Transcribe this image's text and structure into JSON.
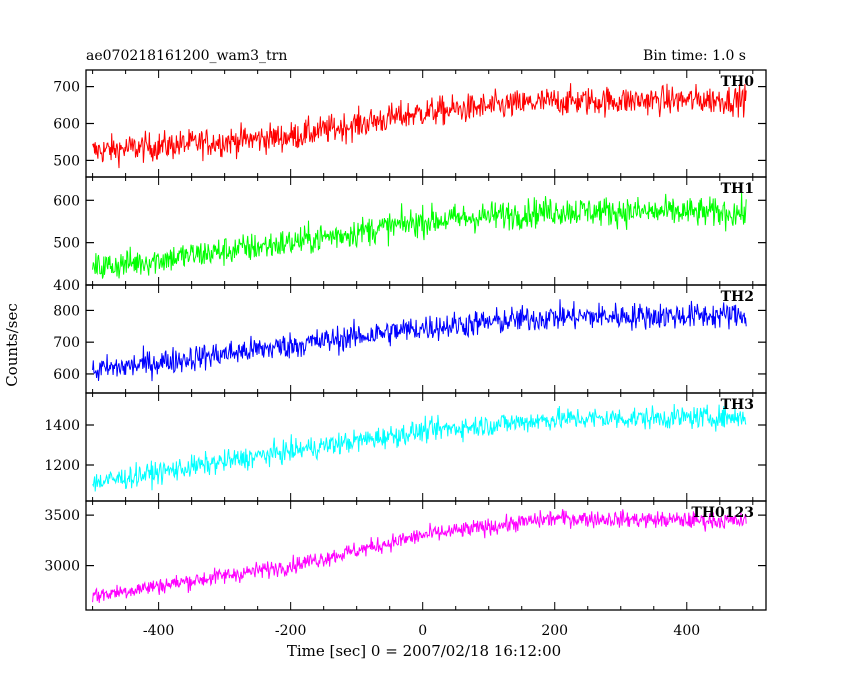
{
  "header": {
    "title": "ae070218161200_wam3_trn",
    "bin_time": "Bin time: 1.0 s"
  },
  "chart_data": {
    "type": "line",
    "xlabel": "Time [sec] 0 = 2007/02/18 16:12:00",
    "ylabel": "Counts/sec",
    "xlim": [
      -510,
      520
    ],
    "xticks": [
      -400,
      -200,
      0,
      200,
      400
    ],
    "x_range": [
      -500,
      490
    ],
    "x_step": 1,
    "panels": [
      {
        "name": "TH0",
        "color": "#ff0000",
        "ylim": [
          455,
          745
        ],
        "yticks": [
          500,
          600,
          700
        ],
        "trend": [
          [
            -500,
            525
          ],
          [
            -200,
            565
          ],
          [
            0,
            630
          ],
          [
            200,
            660
          ],
          [
            490,
            665
          ]
        ],
        "noise": 28
      },
      {
        "name": "TH1",
        "color": "#00ff00",
        "ylim": [
          400,
          655
        ],
        "yticks": [
          400,
          500,
          600
        ],
        "trend": [
          [
            -500,
            440
          ],
          [
            -200,
            500
          ],
          [
            0,
            550
          ],
          [
            200,
            575
          ],
          [
            490,
            570
          ]
        ],
        "noise": 25
      },
      {
        "name": "TH2",
        "color": "#0000ff",
        "ylim": [
          540,
          880
        ],
        "yticks": [
          600,
          700,
          800
        ],
        "trend": [
          [
            -500,
            610
          ],
          [
            -200,
            690
          ],
          [
            0,
            745
          ],
          [
            200,
            780
          ],
          [
            490,
            785
          ]
        ],
        "noise": 30
      },
      {
        "name": "TH3",
        "color": "#00ffff",
        "ylim": [
          1020,
          1560
        ],
        "yticks": [
          1200,
          1400
        ],
        "trend": [
          [
            -500,
            1110
          ],
          [
            -200,
            1270
          ],
          [
            0,
            1370
          ],
          [
            200,
            1430
          ],
          [
            490,
            1440
          ]
        ],
        "noise": 40
      },
      {
        "name": "TH0123",
        "color": "#ff00ff",
        "ylim": [
          2560,
          3640
        ],
        "yticks": [
          3000,
          3500
        ],
        "trend": [
          [
            -500,
            2700
          ],
          [
            -200,
            3000
          ],
          [
            0,
            3300
          ],
          [
            200,
            3470
          ],
          [
            490,
            3440
          ]
        ],
        "noise": 60
      }
    ]
  }
}
